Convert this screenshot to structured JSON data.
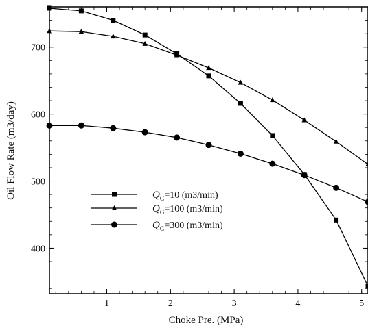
{
  "chart_data": {
    "type": "line",
    "title": "",
    "xlabel": "Choke Pre.  (MPa)",
    "ylabel": "Oil Flow Rate (m3/day)",
    "xlim": [
      0.1,
      5.1
    ],
    "ylim": [
      332,
      760
    ],
    "x_ticks": [
      1,
      2,
      3,
      4,
      5
    ],
    "x_tick_labels": [
      "1",
      "2",
      "3",
      "4",
      "5"
    ],
    "y_ticks": [
      400,
      500,
      600,
      700
    ],
    "y_tick_labels": [
      "400",
      "500",
      "600",
      "700"
    ],
    "grid": false,
    "legend_position": "center-left",
    "series": [
      {
        "name": "Q_G=10   (m3/min)",
        "legend": {
          "symbol": "Q",
          "subscript": "G",
          "rest": "=10   (m3/min)"
        },
        "marker": "square",
        "x": [
          0.1,
          0.6,
          1.1,
          1.6,
          2.1,
          2.6,
          3.1,
          3.6,
          4.1,
          4.6,
          5.1
        ],
        "y": [
          758,
          754,
          740,
          718,
          690,
          657,
          616,
          568,
          510,
          442,
          343
        ]
      },
      {
        "name": "Q_G=100 (m3/min)",
        "legend": {
          "symbol": "Q",
          "subscript": "G",
          "rest": "=100 (m3/min)"
        },
        "marker": "triangle",
        "x": [
          0.1,
          0.6,
          1.1,
          1.6,
          2.1,
          2.6,
          3.1,
          3.6,
          4.1,
          4.6,
          5.1
        ],
        "y": [
          724,
          723,
          716,
          705,
          688,
          669,
          647,
          621,
          591,
          559,
          525
        ]
      },
      {
        "name": "Q_G=300 (m3/min)",
        "legend": {
          "symbol": "Q",
          "subscript": "G",
          "rest": "=300 (m3/min)"
        },
        "marker": "circle",
        "x": [
          0.1,
          0.6,
          1.1,
          1.6,
          2.1,
          2.6,
          3.1,
          3.6,
          4.1,
          4.6,
          5.1
        ],
        "y": [
          583,
          583,
          579,
          573,
          565,
          554,
          541,
          526,
          509,
          490,
          469
        ]
      }
    ]
  }
}
